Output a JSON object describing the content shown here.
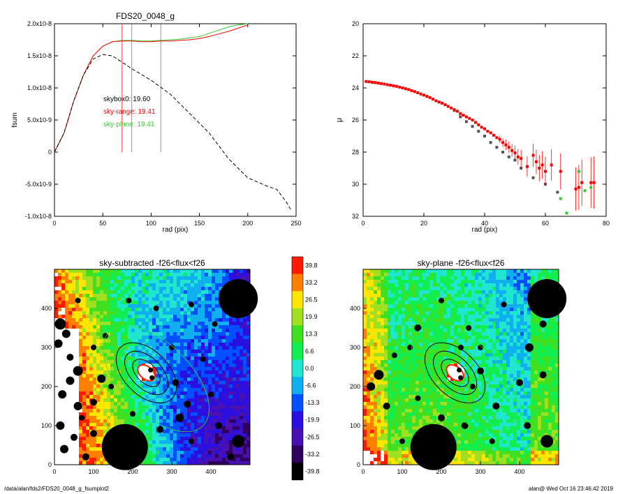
{
  "chart_data": [
    {
      "type": "line",
      "title": "FDS20_0048_g",
      "xlabel": "rad (pix)",
      "ylabel": "fsum",
      "xlim": [
        0,
        250
      ],
      "ylim": [
        -1e-08,
        2e-08
      ],
      "x_ticks": [
        "0",
        "50",
        "100",
        "150",
        "200",
        "250"
      ],
      "y_ticks": [
        "-1.0x10-8",
        "-5.0x10-9",
        "0",
        "5.0x10-9",
        "1.0x10-8",
        "1.5x10-8",
        "2.0x10-8"
      ],
      "vlines": [
        {
          "x": 70,
          "color": "#ff0000"
        },
        {
          "x": 80,
          "color": "#777777"
        },
        {
          "x": 110,
          "color": "#777777"
        }
      ],
      "annotations": [
        {
          "text": "skybox0: 19.60",
          "color": "#000000"
        },
        {
          "text": "sky-range: 19.41",
          "color": "#ff0000"
        },
        {
          "text": "sky-plane: 19.41",
          "color": "#33cc33"
        }
      ],
      "series": [
        {
          "color": "#33cc33",
          "x": [
            0,
            10,
            20,
            30,
            40,
            50,
            60,
            70,
            80,
            90,
            100,
            110,
            120,
            130,
            140,
            150,
            160,
            170,
            180,
            190,
            200
          ],
          "values": [
            0,
            3e-09,
            8e-09,
            1.2e-08,
            1.5e-08,
            1.65e-08,
            1.72e-08,
            1.74e-08,
            1.74e-08,
            1.73e-08,
            1.73e-08,
            1.74e-08,
            1.75e-08,
            1.76e-08,
            1.78e-08,
            1.8e-08,
            1.85e-08,
            1.9e-08,
            1.95e-08,
            1.98e-08,
            2e-08
          ]
        },
        {
          "color": "#ff0000",
          "x": [
            0,
            10,
            20,
            30,
            40,
            50,
            60,
            70,
            80,
            90,
            100,
            110,
            120,
            130,
            140,
            150,
            160,
            170,
            180,
            190,
            200
          ],
          "values": [
            0,
            3e-09,
            8e-09,
            1.2e-08,
            1.5e-08,
            1.65e-08,
            1.72e-08,
            1.73e-08,
            1.73e-08,
            1.72e-08,
            1.72e-08,
            1.73e-08,
            1.73e-08,
            1.74e-08,
            1.75e-08,
            1.77e-08,
            1.8e-08,
            1.84e-08,
            1.88e-08,
            1.93e-08,
            1.98e-08
          ]
        },
        {
          "color": "#000000",
          "dashed": true,
          "x": [
            0,
            10,
            20,
            30,
            40,
            50,
            60,
            70,
            80,
            100,
            120,
            140,
            160,
            180,
            200,
            220,
            230,
            240,
            245
          ],
          "values": [
            0,
            3e-09,
            8e-09,
            1.2e-08,
            1.45e-08,
            1.52e-08,
            1.5e-08,
            1.4e-08,
            1.3e-08,
            1.12e-08,
            9e-09,
            6e-09,
            3e-09,
            -1e-09,
            -4e-09,
            -5.3e-09,
            -5.8e-09,
            -7.8e-09,
            -9.1e-09
          ]
        }
      ]
    },
    {
      "type": "scatter",
      "xlabel": "rad (pix)",
      "ylabel": "μ",
      "xlim": [
        0,
        80
      ],
      "ylim": [
        32,
        20
      ],
      "x_ticks": [
        "0",
        "20",
        "40",
        "60",
        "80"
      ],
      "y_ticks": [
        "20",
        "22",
        "24",
        "26",
        "28",
        "30",
        "32"
      ],
      "series": [
        {
          "color": "#ff0000",
          "x": [
            1,
            2,
            3,
            4,
            5,
            6,
            7,
            8,
            9,
            10,
            11,
            12,
            13,
            14,
            15,
            16,
            17,
            18,
            19,
            20,
            21,
            22,
            23,
            24,
            25,
            26,
            27,
            28,
            29,
            30,
            31,
            32,
            33,
            34,
            35,
            36,
            37,
            38,
            39,
            40,
            41,
            42,
            43,
            44,
            45,
            46,
            47,
            48,
            49,
            50,
            51,
            52,
            54,
            56,
            57,
            58,
            59,
            60,
            62,
            65,
            70,
            71,
            72,
            75,
            76
          ],
          "values": [
            23.6,
            23.62,
            23.65,
            23.67,
            23.7,
            23.73,
            23.76,
            23.8,
            23.83,
            23.87,
            23.9,
            23.95,
            24.0,
            24.05,
            24.1,
            24.17,
            24.23,
            24.3,
            24.38,
            24.45,
            24.53,
            24.6,
            24.7,
            24.8,
            24.88,
            24.95,
            25.05,
            25.15,
            25.25,
            25.35,
            25.45,
            25.6,
            25.7,
            25.8,
            25.9,
            26.0,
            26.15,
            26.3,
            26.45,
            26.55,
            26.7,
            26.8,
            26.95,
            27.1,
            27.2,
            27.4,
            27.55,
            27.7,
            27.9,
            28.05,
            28.3,
            28.4,
            28.9,
            28.2,
            28.6,
            29.0,
            28.8,
            29.2,
            28.8,
            29.2,
            30.3,
            30.2,
            29.9,
            29.9,
            29.9
          ]
        },
        {
          "color": "#33cc33",
          "x": [
            65,
            67,
            71,
            73,
            75
          ],
          "values": [
            30.9,
            31.8,
            29.2,
            30.4,
            30.2
          ]
        },
        {
          "color": "#555555",
          "x": [
            30,
            32,
            34,
            36,
            38,
            40,
            42,
            44,
            46,
            48,
            50,
            52,
            56,
            60,
            64
          ],
          "values": [
            25.4,
            25.8,
            26.1,
            26.4,
            26.7,
            27.0,
            27.4,
            27.7,
            28.0,
            28.3,
            28.5,
            29.0,
            29.6,
            30.0,
            30.5
          ]
        }
      ]
    },
    {
      "type": "heatmap",
      "title": "sky-subtracted -f26<flux<f26",
      "xlim": [
        0,
        500
      ],
      "ylim": [
        0,
        500
      ],
      "x_ticks": [
        "0",
        "100",
        "200",
        "300",
        "400"
      ],
      "y_ticks": [
        "0",
        "100",
        "200",
        "300",
        "400"
      ]
    },
    {
      "type": "heatmap",
      "title": "sky-plane -f26<flux<f26",
      "xlim": [
        0,
        500
      ],
      "ylim": [
        0,
        500
      ],
      "x_ticks": [
        "0",
        "100",
        "200",
        "300",
        "400"
      ],
      "y_ticks": [
        "0",
        "100",
        "200",
        "300",
        "400"
      ]
    }
  ],
  "colorbar": {
    "labels": [
      "39.8",
      "33.2",
      "26.5",
      "19.9",
      "13.3",
      "6.6",
      "0.0",
      "-6.6",
      "-13.3",
      "-19.9",
      "-26.5",
      "-33.2",
      "-39.8"
    ],
    "colors": [
      "#ff1a00",
      "#ff8000",
      "#ffe600",
      "#a0e020",
      "#40e020",
      "#10ee50",
      "#20e6d0",
      "#10b0f0",
      "#0050ff",
      "#2a10e0",
      "#4a10b0",
      "#300060",
      "#000000"
    ]
  },
  "footer": {
    "path": "/data/alan/fds2/FDS20_0048_g_fsumplot2",
    "stamp": "alan@  Wed Oct 16 23:46:42 2019"
  }
}
